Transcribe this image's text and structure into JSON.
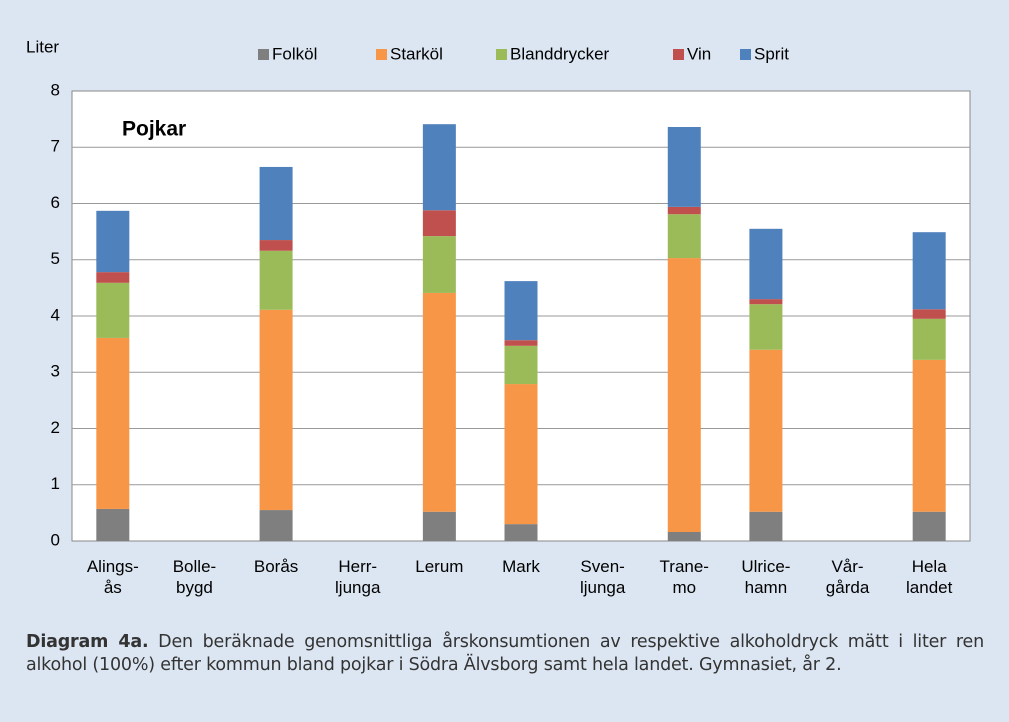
{
  "chart_data": {
    "type": "stacked_bar",
    "annotation": "Pojkar",
    "y_label": "Liter",
    "categories": [
      "Alings-\nås",
      "Bolle-\nbygd",
      "Borås",
      "Herr-\nljunga",
      "Lerum",
      "Mark",
      "Sven-\nljunga",
      "Trane-\nmo",
      "Ulrice-\nhamn",
      "Vår-\ngårda",
      "Hela\nlandet"
    ],
    "series": [
      {
        "name": "Folköl",
        "color": "#7f7f7f",
        "values": [
          0.57,
          null,
          0.55,
          null,
          0.52,
          0.3,
          null,
          0.16,
          0.52,
          null,
          0.52
        ]
      },
      {
        "name": "Starköl",
        "color": "#f79646",
        "values": [
          3.04,
          null,
          3.56,
          null,
          3.89,
          2.49,
          null,
          4.87,
          2.88,
          null,
          2.7
        ]
      },
      {
        "name": "Blanddrycker",
        "color": "#9bbb59",
        "values": [
          0.98,
          null,
          1.05,
          null,
          1.01,
          0.68,
          null,
          0.78,
          0.81,
          null,
          0.73
        ]
      },
      {
        "name": "Vin",
        "color": "#c0504d",
        "values": [
          0.19,
          null,
          0.19,
          null,
          0.46,
          0.1,
          null,
          0.13,
          0.09,
          null,
          0.17
        ]
      },
      {
        "name": "Sprit",
        "color": "#4f81bd",
        "values": [
          1.09,
          null,
          1.3,
          null,
          1.53,
          1.05,
          null,
          1.42,
          1.25,
          null,
          1.37
        ]
      }
    ],
    "ylim": [
      0,
      8
    ],
    "yticks": [
      0,
      1,
      2,
      3,
      4,
      5,
      6,
      7,
      8
    ],
    "grid": true
  },
  "caption": {
    "label": "Diagram 4a.",
    "text": "Den beräknade genomsnittliga årskonsumtionen av respektive alkoholdryck mätt i liter ren alkohol (100%) efter kommun bland pojkar i Södra Älvsborg samt hela landet. Gymnasiet, år 2."
  }
}
